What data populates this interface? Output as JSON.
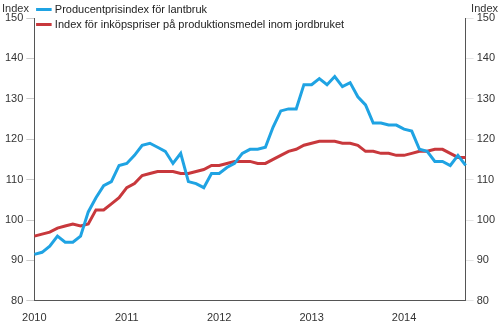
{
  "chart_data": {
    "type": "line",
    "ylabel": "Index",
    "y2label": "Index",
    "categories": [
      "2010",
      null,
      null,
      null,
      null,
      null,
      null,
      null,
      null,
      null,
      null,
      null,
      "2011",
      null,
      null,
      null,
      null,
      null,
      null,
      null,
      null,
      null,
      null,
      null,
      "2012",
      null,
      null,
      null,
      null,
      null,
      null,
      null,
      null,
      null,
      null,
      null,
      "2013",
      null,
      null,
      null,
      null,
      null,
      null,
      null,
      null,
      null,
      null,
      null,
      "2014",
      null,
      null,
      null,
      null,
      null,
      null,
      null,
      null
    ],
    "series": [
      {
        "name": "Producentprisindex för lantbruk",
        "color": "#1fa3e3",
        "values": [
          91.5,
          92,
          93.5,
          96,
          94.5,
          94.5,
          96,
          102,
          105.5,
          108.5,
          109.5,
          113.5,
          114,
          116,
          118.5,
          119,
          118,
          117,
          114,
          116.5,
          109.5,
          109,
          108,
          111.5,
          111.5,
          113,
          114,
          116.5,
          117.5,
          117.5,
          118,
          123,
          127,
          127.5,
          127.5,
          133.5,
          133.5,
          135,
          133.5,
          135.5,
          133,
          134,
          130.5,
          128.5,
          124,
          124,
          123.5,
          123.5,
          122.5,
          122,
          117.5,
          117,
          114.5,
          114.5,
          113.5,
          116,
          113.5
        ]
      },
      {
        "name": "Index för inköpspriser på produktionsmedel inom jordbruket",
        "color": "#c8383c",
        "values": [
          96,
          96.5,
          97,
          98,
          98.5,
          99,
          98.5,
          99,
          102.5,
          102.5,
          104,
          105.5,
          108,
          109,
          111,
          111.5,
          112,
          112,
          112,
          111.5,
          111.5,
          112,
          112.5,
          113.5,
          113.5,
          114,
          114.5,
          114.5,
          114.5,
          114,
          114,
          115,
          116,
          117,
          117.5,
          118.5,
          119,
          119.5,
          119.5,
          119.5,
          119,
          119,
          118.5,
          117,
          117,
          116.5,
          116.5,
          116,
          116,
          116.5,
          117,
          117,
          117.5,
          117.5,
          116.5,
          115.5,
          115.5
        ]
      }
    ],
    "ylim": [
      80,
      150
    ],
    "yticks": [
      80,
      90,
      100,
      110,
      120,
      130,
      140,
      150
    ],
    "y2lim": [
      80,
      150
    ],
    "y2ticks": [
      80,
      90,
      100,
      110,
      120,
      130,
      140,
      150
    ],
    "grid": false,
    "legend": "top-left"
  }
}
